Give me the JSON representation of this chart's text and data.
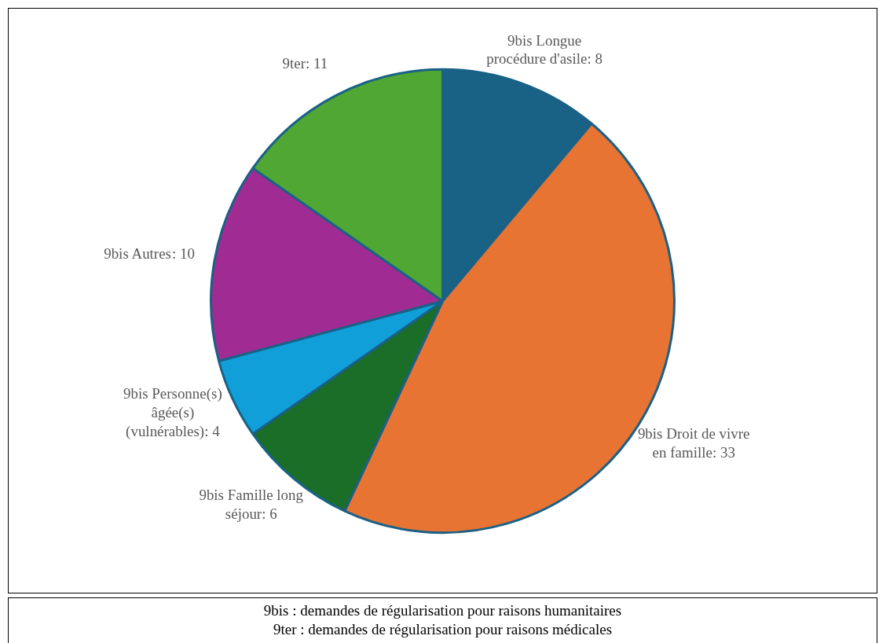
{
  "chart_data": {
    "type": "pie",
    "categories": [
      "9bis Longue procédure d'asile",
      "9bis Droit de vivre en famille",
      "9bis Famille long séjour",
      "9bis Personne(s) âgée(s) (vulnérables)",
      "9bis Autres",
      "9ter"
    ],
    "values": [
      8,
      33,
      6,
      4,
      10,
      11
    ],
    "colors": [
      "#1a6186",
      "#e87434",
      "#1a6e27",
      "#109fd8",
      "#a02c93",
      "#50a733"
    ],
    "value_labels": [
      ": 8",
      ": 33",
      ": 6",
      ": 4",
      ": 10",
      ": 11"
    ],
    "legend": false,
    "annotations": [
      "9bis : demandes de régularisation pour raisons humanitaires",
      "9ter : demandes de régularisation pour raisons médicales"
    ]
  }
}
